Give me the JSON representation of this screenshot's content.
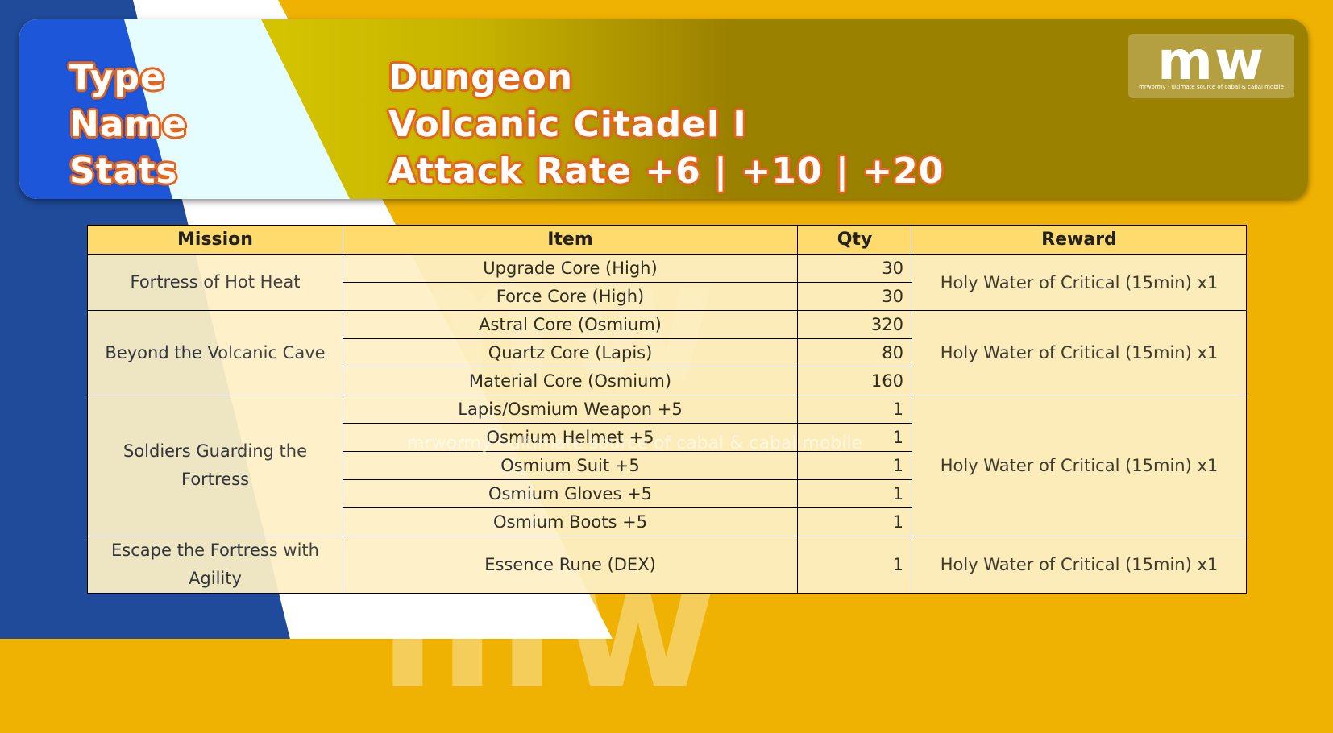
{
  "header": {
    "labels": [
      "Type",
      "Name",
      "Stats"
    ],
    "values": [
      "Dungeon",
      "Volcanic Citadel I",
      "Attack Rate +6 | +10 | +20"
    ]
  },
  "logo": {
    "mark": "mw",
    "tagline": "mrwormy - ultimate source of cabal & cabal mobile"
  },
  "watermark": {
    "mark": "mw",
    "tagline": "mrwormy - ultimate source of cabal & cabal mobile"
  },
  "table": {
    "headers": [
      "Mission",
      "Item",
      "Qty",
      "Reward"
    ],
    "groups": [
      {
        "mission": "Fortress of Hot Heat",
        "reward": "Holy Water of Critical (15min) x1",
        "items": [
          {
            "item": "Upgrade Core (High)",
            "qty": "30"
          },
          {
            "item": "Force Core (High)",
            "qty": "30"
          }
        ]
      },
      {
        "mission": "Beyond the Volcanic Cave",
        "reward": "Holy Water of Critical (15min) x1",
        "items": [
          {
            "item": "Astral Core (Osmium)",
            "qty": "320"
          },
          {
            "item": "Quartz Core (Lapis)",
            "qty": "80"
          },
          {
            "item": "Material Core (Osmium)",
            "qty": "160"
          }
        ]
      },
      {
        "mission": "Soldiers Guarding the Fortress",
        "reward": "Holy Water of Critical (15min) x1",
        "items": [
          {
            "item": "Lapis/Osmium Weapon +5",
            "qty": "1"
          },
          {
            "item": "Osmium Helmet +5",
            "qty": "1"
          },
          {
            "item": "Osmium Suit +5",
            "qty": "1"
          },
          {
            "item": "Osmium Gloves +5",
            "qty": "1"
          },
          {
            "item": "Osmium Boots +5",
            "qty": "1"
          }
        ]
      },
      {
        "mission": "Escape the Fortress with Agility",
        "reward": "Holy Water of Critical (15min) x1",
        "items": [
          {
            "item": "Essence Rune (DEX)",
            "qty": "1"
          }
        ]
      }
    ]
  },
  "colors": {
    "background_orange": "#efb203",
    "background_blue": "#1f4b9a",
    "header_blue": "#1e56d9",
    "header_cyan": "#e6fdff",
    "header_yellow": "#e1d300",
    "header_olive": "#9b8100",
    "table_header": "#fedb6c",
    "table_cell": "#fef1c7",
    "outline_orange": "#e8641b"
  }
}
